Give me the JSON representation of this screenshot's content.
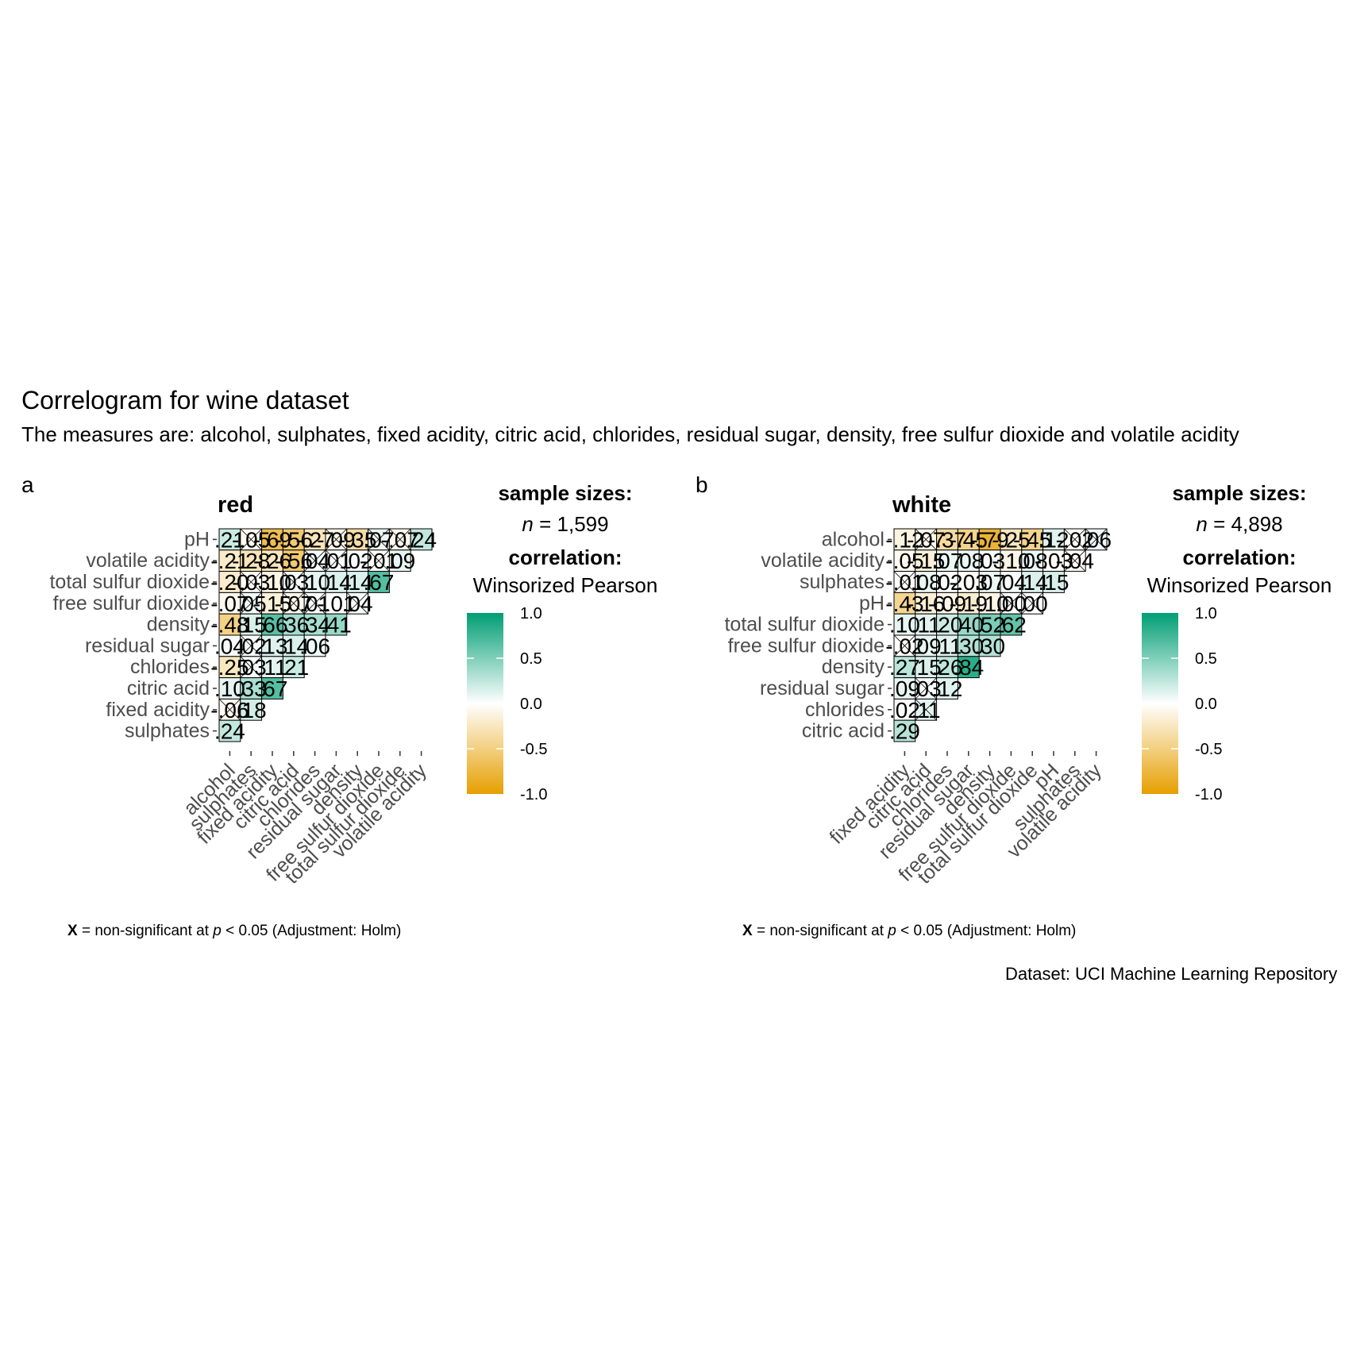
{
  "title": "Correlogram for wine dataset",
  "subtitle": "The measures are: alcohol, sulphates, fixed acidity, citric acid, chlorides, residual sugar, density, free sulfur dioxide and volatile acidity",
  "source": "Dataset: UCI Machine Learning Repository",
  "colors": {
    "positive": "#009E73",
    "zero": "#FFFFFF",
    "negative": "#E69F00"
  },
  "chart_data": [
    {
      "type": "heatmap",
      "tag": "a",
      "title": "red",
      "legend": {
        "sample_heading": "sample sizes:",
        "n_label": "n",
        "n_value": "= 1,599",
        "corr_heading": "correlation:",
        "corr_type": "Winsorized Pearson",
        "ticks": [
          "1.0",
          "0.5",
          "0.0",
          "-0.5",
          "-1.0"
        ],
        "range": [
          -1,
          1
        ]
      },
      "caption": {
        "x": "X",
        "text": "= non-significant at",
        "p": "p",
        "rest": "< 0.05 (Adjustment: Holm)"
      },
      "rows": [
        "pH",
        "volatile acidity",
        "total sulfur dioxide",
        "free sulfur dioxide",
        "density",
        "residual sugar",
        "chlorides",
        "citric acid",
        "fixed acidity",
        "sulphates"
      ],
      "cols": [
        "alcohol",
        "sulphates",
        "fixed acidity",
        "citric acid",
        "chlorides",
        "residual sugar",
        "density",
        "free sulfur dioxide",
        "total sulfur dioxide",
        "volatile acidity"
      ],
      "values": [
        [
          0.21,
          -0.05,
          -0.69,
          -0.56,
          -0.27,
          -0.09,
          -0.35,
          0.07,
          -0.07,
          0.24
        ],
        [
          -0.21,
          -0.28,
          -0.26,
          -0.56,
          0.04,
          0.01,
          0.02,
          -0.01,
          0.09
        ],
        [
          -0.2,
          -0.03,
          -0.1,
          0.03,
          0.1,
          0.14,
          0.14,
          0.67
        ],
        [
          -0.07,
          0.05,
          -0.15,
          -0.07,
          0.01,
          -0.01,
          0.04
        ],
        [
          -0.48,
          0.15,
          0.66,
          0.36,
          0.34,
          0.41
        ],
        [
          0.04,
          0.02,
          0.13,
          0.14,
          0.06
        ],
        [
          -0.25,
          0.03,
          0.11,
          0.21
        ],
        [
          0.1,
          0.33,
          0.67
        ],
        [
          -0.06,
          0.18
        ],
        [
          0.24
        ]
      ],
      "nonsignificant": [
        [
          false,
          true,
          false,
          false,
          false,
          true,
          false,
          true,
          true,
          false
        ],
        [
          false,
          false,
          false,
          false,
          true,
          true,
          false,
          true,
          false
        ],
        [
          false,
          true,
          false,
          true,
          false,
          false,
          false,
          false
        ],
        [
          false,
          true,
          false,
          true,
          true,
          false,
          true
        ],
        [
          false,
          false,
          false,
          false,
          false,
          false
        ],
        [
          false,
          true,
          false,
          false,
          false
        ],
        [
          false,
          true,
          false,
          false
        ],
        [
          false,
          false,
          false
        ],
        [
          true,
          false
        ],
        [
          false
        ]
      ],
      "labels": [
        [
          ".21",
          "-.05",
          "-.69",
          "-.56",
          "-.27",
          "-.09",
          "-.35",
          ".07",
          "-.07",
          ".24"
        ],
        [
          "-.21",
          "-.28",
          "-.26",
          "-.56",
          ".04",
          ".01",
          ".02",
          "-.01",
          ".09"
        ],
        [
          "-.20",
          "-.03",
          "-.10",
          ".03",
          ".10",
          ".14",
          ".14",
          ".67"
        ],
        [
          "-.07",
          ".05",
          "-.15",
          "-.07",
          ".01",
          "-.01",
          ".04"
        ],
        [
          "-.48",
          ".15",
          ".66",
          ".36",
          ".34",
          ".41"
        ],
        [
          ".04",
          ".02",
          ".13",
          ".14",
          ".06"
        ],
        [
          "-.25",
          ".03",
          ".11",
          ".21"
        ],
        [
          ".10",
          ".33",
          ".67"
        ],
        [
          "-.06",
          ".18"
        ],
        [
          ".24"
        ]
      ]
    },
    {
      "type": "heatmap",
      "tag": "b",
      "title": "white",
      "legend": {
        "sample_heading": "sample sizes:",
        "n_label": "n",
        "n_value": "= 4,898",
        "corr_heading": "correlation:",
        "corr_type": "Winsorized Pearson",
        "ticks": [
          "1.0",
          "0.5",
          "0.0",
          "-0.5",
          "-1.0"
        ],
        "range": [
          -1,
          1
        ]
      },
      "caption": {
        "x": "X",
        "text": "= non-significant at",
        "p": "p",
        "rest": "< 0.05 (Adjustment: Holm)"
      },
      "rows": [
        "alcohol",
        "volatile acidity",
        "sulphates",
        "pH",
        "total sulfur dioxide",
        "free sulfur dioxide",
        "density",
        "residual sugar",
        "chlorides",
        "citric acid"
      ],
      "cols": [
        "fixed acidity",
        "citric acid",
        "chlorides",
        "residual sugar",
        "density",
        "free sulfur dioxide",
        "total sulfur dioxide",
        "pH",
        "sulphates",
        "volatile acidity"
      ],
      "values": [
        [
          -0.12,
          -0.07,
          -0.37,
          -0.45,
          -0.79,
          -0.25,
          -0.45,
          0.12,
          -0.02,
          0.06
        ],
        [
          -0.05,
          -0.15,
          0.07,
          0.08,
          0.03,
          -0.1,
          0.08,
          -0.03,
          -0.04
        ],
        [
          -0.01,
          0.08,
          0.02,
          -0.03,
          0.07,
          0.04,
          0.14,
          0.15
        ],
        [
          -0.43,
          -0.16,
          -0.09,
          -0.19,
          -0.1,
          0.0,
          0.0
        ],
        [
          0.1,
          0.11,
          0.2,
          0.4,
          0.52,
          0.62
        ],
        [
          -0.02,
          0.09,
          0.11,
          0.3,
          0.3
        ],
        [
          0.27,
          0.15,
          0.26,
          0.84
        ],
        [
          0.09,
          0.03,
          0.12
        ],
        [
          0.02,
          0.11
        ],
        [
          0.29
        ]
      ],
      "nonsignificant": [
        [
          false,
          true,
          false,
          false,
          false,
          false,
          false,
          false,
          true,
          true
        ],
        [
          false,
          false,
          false,
          false,
          false,
          false,
          false,
          false,
          true
        ],
        [
          true,
          false,
          false,
          false,
          false,
          false,
          false,
          false
        ],
        [
          false,
          false,
          false,
          false,
          false,
          true,
          true
        ],
        [
          false,
          false,
          false,
          false,
          false,
          false
        ],
        [
          true,
          false,
          false,
          false,
          false
        ],
        [
          false,
          false,
          false,
          false
        ],
        [
          false,
          true,
          false
        ],
        [
          false,
          true
        ],
        [
          false
        ]
      ],
      "labels": [
        [
          "-.12",
          "-.07",
          "-.37",
          "-.45",
          "-.79",
          "-.25",
          "-.45",
          ".12",
          "-.02",
          ".06"
        ],
        [
          "-.05",
          "-.15",
          ".07",
          ".08",
          ".03",
          "-.10",
          ".08",
          "-.03",
          "-.04"
        ],
        [
          "-.01",
          ".08",
          ".02",
          "-.03",
          ".07",
          ".04",
          ".14",
          ".15"
        ],
        [
          "-.43",
          "-.16",
          "-.09",
          "-.19",
          "-.10",
          ".00",
          ".00"
        ],
        [
          ".10",
          ".11",
          ".20",
          ".40",
          ".52",
          ".62"
        ],
        [
          "-.02",
          ".09",
          ".11",
          ".30",
          ".30"
        ],
        [
          ".27",
          ".15",
          ".26",
          ".84"
        ],
        [
          ".09",
          ".03",
          ".12"
        ],
        [
          ".02",
          ".11"
        ],
        [
          ".29"
        ]
      ]
    }
  ]
}
